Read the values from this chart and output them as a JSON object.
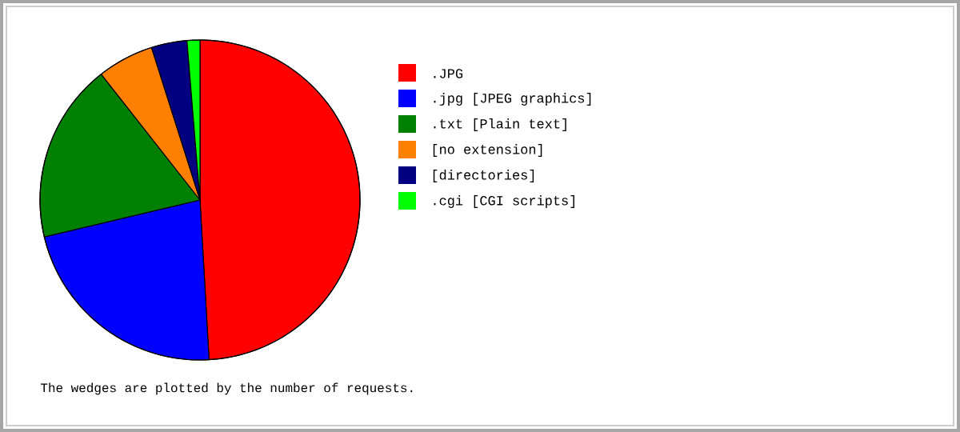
{
  "chart_data": {
    "type": "pie",
    "categories": [
      ".JPG",
      ".jpg  [JPEG graphics]",
      ".txt  [Plain text]",
      "[no extension]",
      "[directories]",
      ".cgi  [CGI scripts]"
    ],
    "values": [
      49.1,
      22.2,
      18.1,
      5.7,
      3.6,
      1.3
    ],
    "colors": [
      "#ff0000",
      "#0000ff",
      "#008000",
      "#ff8000",
      "#000080",
      "#00ff00"
    ],
    "legend": "right",
    "annotations": [
      "The wedges are plotted by the number of requests."
    ]
  }
}
